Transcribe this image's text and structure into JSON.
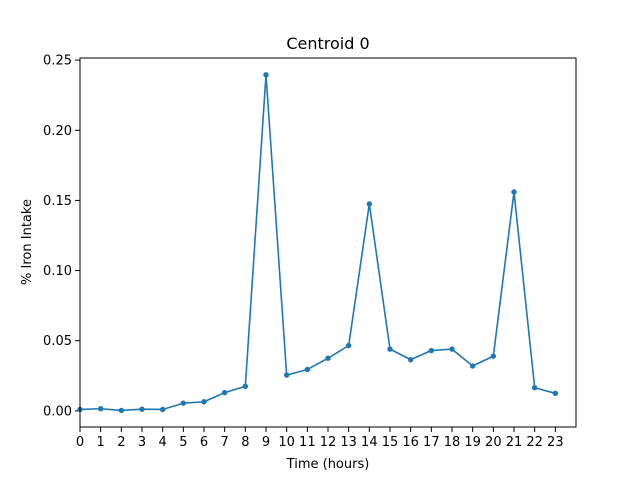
{
  "chart_data": {
    "type": "line",
    "title": "Centroid 0",
    "xlabel": "Time (hours)",
    "ylabel": "% Iron Intake",
    "x": [
      0,
      1,
      2,
      3,
      4,
      5,
      6,
      7,
      8,
      9,
      10,
      11,
      12,
      13,
      14,
      15,
      16,
      17,
      18,
      19,
      20,
      21,
      22,
      23
    ],
    "series": [
      {
        "values": [
          0.001,
          0.0015,
          0.0003,
          0.0012,
          0.001,
          0.0055,
          0.0065,
          0.013,
          0.0175,
          0.2395,
          0.0255,
          0.0295,
          0.0375,
          0.0465,
          0.1475,
          0.044,
          0.0365,
          0.043,
          0.044,
          0.032,
          0.039,
          0.156,
          0.0165,
          0.0125
        ],
        "color": "#1f77b4",
        "marker": "dot"
      }
    ],
    "xlim": [
      0,
      24
    ],
    "ylim": [
      -0.0115,
      0.2515
    ],
    "xticks": [
      "0",
      "1",
      "2",
      "3",
      "4",
      "5",
      "6",
      "7",
      "8",
      "9",
      "10",
      "11",
      "12",
      "13",
      "14",
      "15",
      "16",
      "17",
      "18",
      "19",
      "20",
      "21",
      "22",
      "23"
    ],
    "yticks": [
      "0.00",
      "0.05",
      "0.10",
      "0.15",
      "0.20",
      "0.25"
    ],
    "ytick_values": [
      0,
      0.05,
      0.1,
      0.15,
      0.2,
      0.25
    ],
    "grid": false,
    "legend": "none"
  }
}
